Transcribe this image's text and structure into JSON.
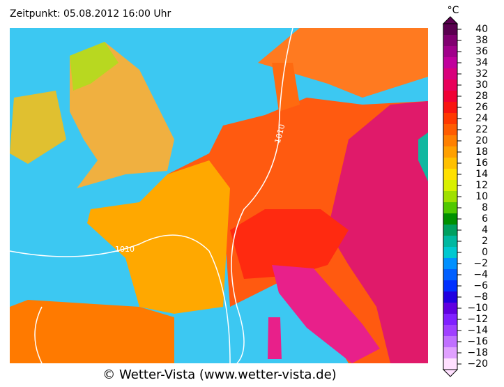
{
  "header": {
    "title": "Zeitpunkt: 05.08.2012 16:00 Uhr"
  },
  "map": {
    "isobar_labels": [
      "1010",
      "1010"
    ]
  },
  "legend": {
    "unit": "°C",
    "labels": [
      "40",
      "38",
      "36",
      "34",
      "32",
      "30",
      "28",
      "26",
      "24",
      "22",
      "20",
      "18",
      "16",
      "14",
      "12",
      "10",
      "8",
      "6",
      "4",
      "2",
      "0",
      "−2",
      "−4",
      "−6",
      "−8",
      "−10",
      "−12",
      "−14",
      "−16",
      "−18",
      "−20"
    ]
  },
  "footer": {
    "credit": "© Wetter-Vista (www.wetter-vista.de)"
  }
}
